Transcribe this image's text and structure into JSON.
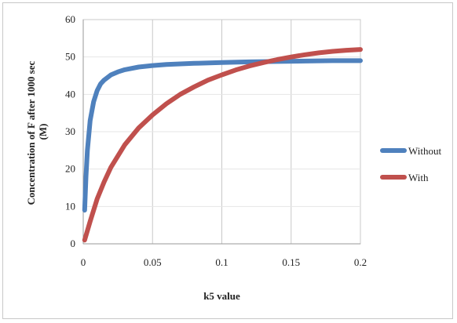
{
  "chart_data": {
    "type": "line",
    "xlabel": "k5 value",
    "ylabel_line1": "Concentration of F after 1000 sec",
    "ylabel_line2": "(M)",
    "xlim": [
      0,
      0.2
    ],
    "ylim": [
      0,
      60
    ],
    "x_ticks": [
      0,
      0.05,
      0.1,
      0.15,
      0.2
    ],
    "x_tick_labels": [
      "0",
      "0.05",
      "0.1",
      "0.15",
      "0.2"
    ],
    "y_ticks": [
      0,
      10,
      20,
      30,
      40,
      50,
      60
    ],
    "y_tick_labels": [
      "0",
      "10",
      "20",
      "30",
      "40",
      "50",
      "60"
    ],
    "grid": "vertical",
    "legend_position": "right",
    "series": [
      {
        "name": "Without",
        "color": "#4f81bd",
        "x": [
          0.001,
          0.002,
          0.003,
          0.005,
          0.0075,
          0.01,
          0.0125,
          0.015,
          0.02,
          0.025,
          0.03,
          0.04,
          0.05,
          0.06,
          0.08,
          0.1,
          0.12,
          0.14,
          0.16,
          0.18,
          0.2
        ],
        "y": [
          9,
          18,
          25,
          33,
          38,
          41,
          42.8,
          43.8,
          45.2,
          46,
          46.6,
          47.3,
          47.7,
          48,
          48.3,
          48.5,
          48.7,
          48.8,
          48.9,
          49,
          49
        ]
      },
      {
        "name": "With",
        "color": "#c0504d",
        "x": [
          0.001,
          0.005,
          0.01,
          0.015,
          0.02,
          0.03,
          0.04,
          0.05,
          0.06,
          0.07,
          0.08,
          0.09,
          0.1,
          0.11,
          0.12,
          0.13,
          0.14,
          0.15,
          0.16,
          0.17,
          0.18,
          0.19,
          0.2
        ],
        "y": [
          1,
          6,
          12,
          16.5,
          20.5,
          26.5,
          31,
          34.5,
          37.5,
          40,
          42,
          43.8,
          45.2,
          46.5,
          47.6,
          48.5,
          49.3,
          50,
          50.6,
          51.1,
          51.5,
          51.8,
          52
        ]
      }
    ]
  }
}
